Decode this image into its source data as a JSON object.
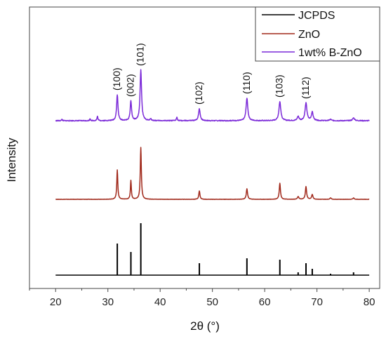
{
  "chart_data": {
    "type": "line",
    "xlabel": "2θ (°)",
    "ylabel": "Intensity",
    "xlim": [
      15,
      82
    ],
    "x_ticks": [
      20,
      30,
      40,
      50,
      60,
      70,
      80
    ],
    "x_tick_labels": [
      "20",
      "30",
      "40",
      "50",
      "60",
      "70",
      "80"
    ],
    "y_ticks_shown": false,
    "legend_position": "top-right",
    "legend": [
      "JCPDS",
      "ZnO",
      "1wt% B-ZnO"
    ],
    "peak_labels": [
      {
        "x": 31.8,
        "text": "(100)"
      },
      {
        "x": 34.4,
        "text": "(002)"
      },
      {
        "x": 36.3,
        "text": "(101)"
      },
      {
        "x": 47.5,
        "text": "(102)"
      },
      {
        "x": 56.6,
        "text": "(110)"
      },
      {
        "x": 62.9,
        "text": "(103)"
      },
      {
        "x": 67.9,
        "text": "(112)"
      }
    ],
    "series": [
      {
        "name": "JCPDS",
        "color": "#000000",
        "style": "stick",
        "x_range": [
          20,
          80
        ],
        "peaks": [
          {
            "x": 31.8,
            "height": 0.45
          },
          {
            "x": 34.4,
            "height": 0.33
          },
          {
            "x": 36.3,
            "height": 0.74
          },
          {
            "x": 47.5,
            "height": 0.17
          },
          {
            "x": 56.6,
            "height": 0.24
          },
          {
            "x": 62.9,
            "height": 0.22
          },
          {
            "x": 66.4,
            "height": 0.04
          },
          {
            "x": 67.9,
            "height": 0.17
          },
          {
            "x": 69.1,
            "height": 0.09
          },
          {
            "x": 72.6,
            "height": 0.02
          },
          {
            "x": 77.0,
            "height": 0.04
          }
        ]
      },
      {
        "name": "ZnO",
        "color": "#a0281a",
        "style": "profile",
        "x_range": [
          20,
          80
        ],
        "peaks": [
          {
            "x": 31.8,
            "height": 0.42,
            "width": 0.16
          },
          {
            "x": 34.4,
            "height": 0.27,
            "width": 0.15
          },
          {
            "x": 36.3,
            "height": 0.74,
            "width": 0.17
          },
          {
            "x": 47.5,
            "height": 0.12,
            "width": 0.18
          },
          {
            "x": 56.6,
            "height": 0.15,
            "width": 0.2
          },
          {
            "x": 62.9,
            "height": 0.23,
            "width": 0.19
          },
          {
            "x": 66.4,
            "height": 0.04,
            "width": 0.2
          },
          {
            "x": 67.9,
            "height": 0.18,
            "width": 0.2
          },
          {
            "x": 69.1,
            "height": 0.07,
            "width": 0.2
          },
          {
            "x": 72.6,
            "height": 0.02,
            "width": 0.2
          },
          {
            "x": 77.0,
            "height": 0.02,
            "width": 0.2
          }
        ]
      },
      {
        "name": "1wt% B-ZnO",
        "color": "#7b2ad8",
        "style": "profile",
        "x_range": [
          20,
          80
        ],
        "peaks": [
          {
            "x": 21.2,
            "height": 0.02,
            "width": 0.12
          },
          {
            "x": 26.6,
            "height": 0.03,
            "width": 0.12
          },
          {
            "x": 28.0,
            "height": 0.06,
            "width": 0.15
          },
          {
            "x": 31.8,
            "height": 0.37,
            "width": 0.22
          },
          {
            "x": 34.4,
            "height": 0.28,
            "width": 0.22
          },
          {
            "x": 36.3,
            "height": 0.72,
            "width": 0.24
          },
          {
            "x": 38.2,
            "height": 0.03,
            "width": 0.15
          },
          {
            "x": 43.2,
            "height": 0.05,
            "width": 0.15
          },
          {
            "x": 47.5,
            "height": 0.17,
            "width": 0.26
          },
          {
            "x": 56.6,
            "height": 0.32,
            "width": 0.28
          },
          {
            "x": 62.9,
            "height": 0.27,
            "width": 0.3
          },
          {
            "x": 66.4,
            "height": 0.06,
            "width": 0.28
          },
          {
            "x": 67.9,
            "height": 0.25,
            "width": 0.3
          },
          {
            "x": 69.1,
            "height": 0.12,
            "width": 0.28
          },
          {
            "x": 72.6,
            "height": 0.02,
            "width": 0.28
          },
          {
            "x": 77.0,
            "height": 0.04,
            "width": 0.3
          }
        ]
      }
    ]
  }
}
